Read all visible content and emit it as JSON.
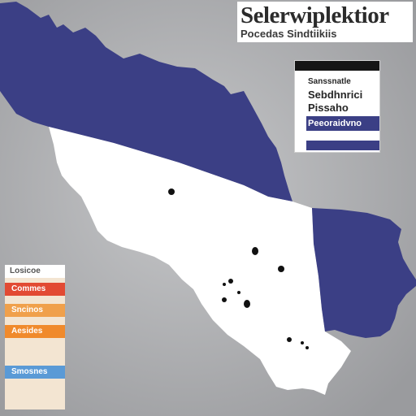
{
  "title": "Selerwiplektior",
  "subtitle": "Pocedas Sindtiikiis",
  "info_box": {
    "line1": "Sanssnatle",
    "line2": "Sebdhnrici",
    "line3": "Pissaho",
    "band": "Peeoraidvno"
  },
  "legend": {
    "header": "Losicoe",
    "items": [
      {
        "label": "Commes",
        "color": "#e24a33",
        "text_color": "#ffffff"
      },
      {
        "label": "Sncinos",
        "color": "#f0a04b",
        "text_color": "#ffffff"
      },
      {
        "label": "Aesides",
        "color": "#f08a2c",
        "text_color": "#ffffff"
      },
      {
        "label": "",
        "color": "#f3e5d2",
        "text_color": "#333333"
      },
      {
        "label": "Smosnes",
        "color": "#5a9ad6",
        "text_color": "#ffffff"
      },
      {
        "label": "",
        "color": "#f3e5d2",
        "text_color": "#333333"
      }
    ]
  },
  "colors": {
    "background": "#a9aaac",
    "navy": "#3b3f85",
    "white_region": "#ffffff"
  }
}
